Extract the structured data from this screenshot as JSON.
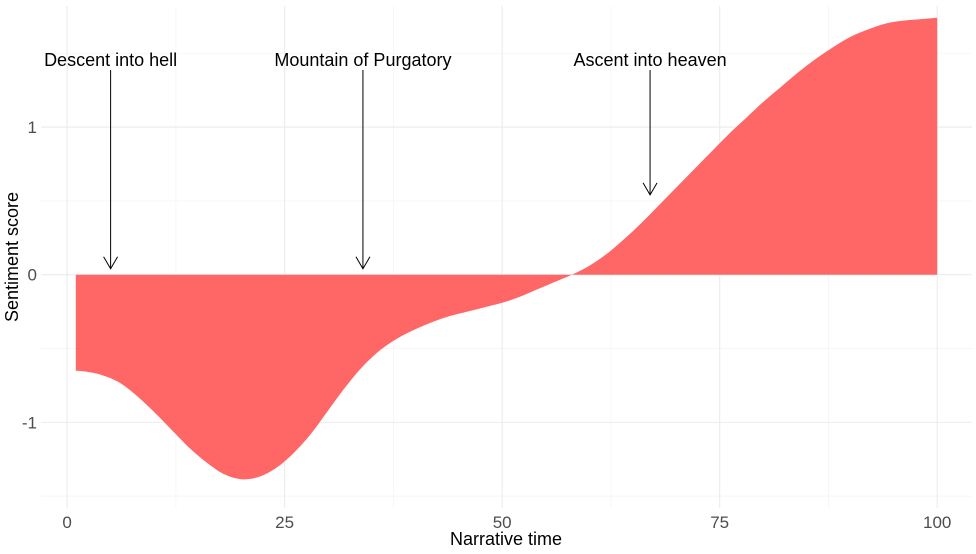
{
  "chart_data": {
    "type": "area",
    "title": "",
    "xlabel": "Narrative time",
    "ylabel": "Sentiment score",
    "xlim": [
      -3,
      104
    ],
    "ylim": [
      -1.58,
      1.82
    ],
    "grid": true,
    "legend": "none",
    "x_ticks": [
      0,
      25,
      50,
      75,
      100
    ],
    "x_tick_labels": [
      "0",
      "25",
      "50",
      "75",
      "100"
    ],
    "y_ticks": [
      -1,
      0,
      1
    ],
    "y_tick_labels": [
      "-1",
      "0",
      "1"
    ],
    "fill_color": "#ff6666",
    "series": [
      {
        "x": [
          1,
          2,
          4,
          6,
          8,
          10,
          12,
          14,
          16,
          18,
          20,
          22,
          24,
          26,
          28,
          30,
          32,
          34,
          36,
          38,
          40,
          42,
          44,
          46,
          48,
          50,
          52,
          54,
          56,
          58,
          60,
          62,
          64,
          66,
          68,
          70,
          72,
          74,
          76,
          78,
          80,
          82,
          84,
          86,
          88,
          90,
          92,
          94,
          96,
          98,
          100
        ],
        "y": [
          -0.65,
          -0.655,
          -0.68,
          -0.73,
          -0.82,
          -0.93,
          -1.05,
          -1.17,
          -1.27,
          -1.35,
          -1.385,
          -1.37,
          -1.31,
          -1.21,
          -1.08,
          -0.92,
          -0.76,
          -0.62,
          -0.51,
          -0.43,
          -0.37,
          -0.32,
          -0.28,
          -0.25,
          -0.22,
          -0.19,
          -0.15,
          -0.1,
          -0.05,
          0.0,
          0.06,
          0.14,
          0.24,
          0.35,
          0.47,
          0.59,
          0.71,
          0.83,
          0.95,
          1.06,
          1.17,
          1.27,
          1.37,
          1.46,
          1.54,
          1.61,
          1.66,
          1.7,
          1.72,
          1.73,
          1.74
        ]
      }
    ],
    "annotations": [
      {
        "label": "Descent into hell",
        "x": 5,
        "y": 0.0
      },
      {
        "label": "Mountain of Purgatory",
        "x": 34,
        "y": 0.0
      },
      {
        "label": "Ascent into heaven",
        "x": 67,
        "y": 0.5
      }
    ]
  }
}
